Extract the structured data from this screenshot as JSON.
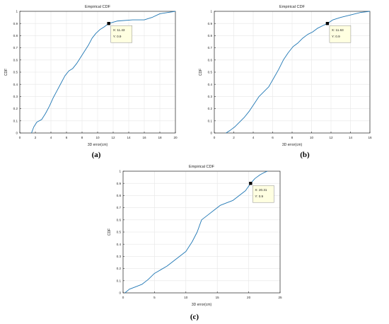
{
  "figure": {
    "captions": [
      "(a)",
      "(b)",
      "(c)"
    ]
  },
  "style": {
    "line_color": "#1f77b4",
    "grid_color": "#e6e6e6",
    "tooltip_bg": "#ffffe1"
  },
  "chart_data": [
    {
      "type": "line",
      "title": "Empirical CDF",
      "xlabel": "3D error(cm)",
      "ylabel": "CDF",
      "xlim": [
        0,
        20
      ],
      "ylim": [
        0,
        1
      ],
      "xticks": [
        0,
        2,
        4,
        6,
        8,
        10,
        12,
        14,
        16,
        18,
        20
      ],
      "yticks": [
        0,
        0.1,
        0.2,
        0.3,
        0.4,
        0.5,
        0.6,
        0.7,
        0.8,
        0.9,
        1
      ],
      "grid": true,
      "x": [
        1.5,
        1.8,
        2.2,
        2.8,
        3.3,
        3.8,
        4.3,
        4.8,
        5.3,
        5.8,
        6.3,
        6.8,
        7.3,
        7.8,
        8.3,
        8.8,
        9.3,
        9.8,
        10.3,
        10.8,
        11.43,
        12.5,
        14.5,
        16.0,
        17.0,
        18.0,
        19.0,
        20.0
      ],
      "y": [
        0,
        0.05,
        0.09,
        0.11,
        0.16,
        0.22,
        0.29,
        0.35,
        0.41,
        0.47,
        0.51,
        0.53,
        0.57,
        0.62,
        0.67,
        0.72,
        0.78,
        0.82,
        0.85,
        0.87,
        0.9,
        0.92,
        0.93,
        0.93,
        0.95,
        0.98,
        0.99,
        1.0
      ],
      "datatip": {
        "x": 11.43,
        "y": 0.9,
        "x_label": "X: 11.43",
        "y_label": "Y: 0.9"
      }
    },
    {
      "type": "line",
      "title": "Empirical CDF",
      "xlabel": "3D error(cm)",
      "ylabel": "CDF",
      "xlim": [
        0,
        16
      ],
      "ylim": [
        0,
        1
      ],
      "xticks": [
        0,
        2,
        4,
        6,
        8,
        10,
        12,
        14,
        16
      ],
      "yticks": [
        0,
        0.1,
        0.2,
        0.3,
        0.4,
        0.5,
        0.6,
        0.7,
        0.8,
        0.9,
        1
      ],
      "grid": true,
      "x": [
        1.2,
        1.6,
        2.1,
        2.6,
        3.1,
        3.6,
        4.1,
        4.6,
        5.1,
        5.6,
        6.1,
        6.6,
        7.1,
        7.6,
        8.1,
        8.6,
        9.1,
        9.6,
        10.1,
        10.6,
        11.1,
        11.63,
        12.2,
        13.0,
        14.0,
        15.0,
        16.0
      ],
      "y": [
        0,
        0.02,
        0.05,
        0.09,
        0.13,
        0.18,
        0.24,
        0.3,
        0.34,
        0.38,
        0.45,
        0.52,
        0.6,
        0.66,
        0.71,
        0.74,
        0.78,
        0.81,
        0.83,
        0.86,
        0.88,
        0.9,
        0.93,
        0.95,
        0.97,
        0.99,
        1.0
      ],
      "datatip": {
        "x": 11.63,
        "y": 0.9,
        "x_label": "X: 11.63",
        "y_label": "Y: 0.9"
      }
    },
    {
      "type": "line",
      "title": "Empirical CDF",
      "xlabel": "3D error(cm)",
      "ylabel": "CDF",
      "xlim": [
        0,
        25
      ],
      "ylim": [
        0,
        1
      ],
      "xticks": [
        0,
        5,
        10,
        15,
        20,
        25
      ],
      "yticks": [
        0,
        0.1,
        0.2,
        0.3,
        0.4,
        0.5,
        0.6,
        0.7,
        0.8,
        0.9,
        1
      ],
      "grid": true,
      "x": [
        0.3,
        1.0,
        2.0,
        3.0,
        4.0,
        5.0,
        6.0,
        7.0,
        8.0,
        9.0,
        10.0,
        11.0,
        11.8,
        12.5,
        13.5,
        14.5,
        15.5,
        16.5,
        17.5,
        18.5,
        19.5,
        20.31,
        21.0,
        21.8,
        22.5,
        23.0
      ],
      "y": [
        0,
        0.03,
        0.05,
        0.07,
        0.11,
        0.16,
        0.19,
        0.22,
        0.26,
        0.3,
        0.34,
        0.42,
        0.5,
        0.6,
        0.64,
        0.68,
        0.72,
        0.74,
        0.76,
        0.8,
        0.84,
        0.9,
        0.94,
        0.97,
        0.99,
        1.0
      ],
      "datatip": {
        "x": 20.31,
        "y": 0.9,
        "x_label": "X: 20.31",
        "y_label": "Y: 0.9"
      }
    }
  ]
}
